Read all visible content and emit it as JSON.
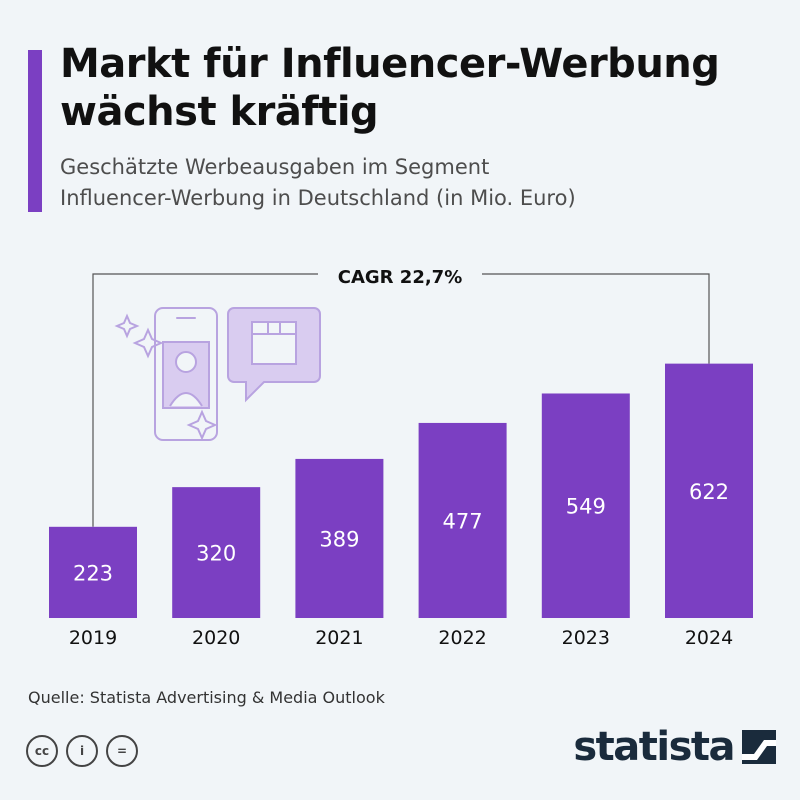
{
  "header": {
    "title_line1": "Markt für Influencer-Werbung",
    "title_line2": "wächst kräftig",
    "subtitle_line1": "Geschätzte Werbeausgaben im Segment",
    "subtitle_line2": "Influencer-Werbung in Deutschland (in Mio. Euro)"
  },
  "chart_data": {
    "type": "bar",
    "categories": [
      "2019",
      "2020",
      "2021",
      "2022",
      "2023",
      "2024"
    ],
    "values": [
      223,
      320,
      389,
      477,
      549,
      622
    ],
    "data_labels": [
      "223",
      "320",
      "389",
      "477",
      "549",
      "622"
    ],
    "annotation": "CAGR 22,7%",
    "ylim": [
      0,
      670
    ],
    "title": "Markt für Influencer-Werbung wächst kräftig",
    "ylabel": "Mio. Euro",
    "bar_color": "#7b3fc2"
  },
  "footer": {
    "source": "Quelle: Statista Advertising & Media Outlook",
    "license_icons": [
      "cc-icon",
      "by-icon",
      "nd-icon"
    ],
    "license_labels": [
      "cc",
      "i",
      "="
    ],
    "brand": "statista"
  },
  "colors": {
    "background": "#f1f5f8",
    "accent": "#7b3fc2",
    "illustration": "#b8a3e0",
    "text": "#111111"
  }
}
